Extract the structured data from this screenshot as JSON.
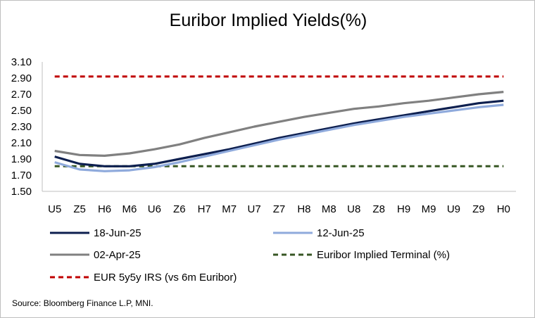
{
  "chart_data": {
    "type": "line",
    "title": "Euribor Implied Yields(%)",
    "xlabel": "",
    "ylabel": "",
    "categories": [
      "U5",
      "Z5",
      "H6",
      "M6",
      "U6",
      "Z6",
      "H7",
      "M7",
      "U7",
      "Z7",
      "H8",
      "M8",
      "U8",
      "Z8",
      "H9",
      "M9",
      "U9",
      "Z9",
      "H0"
    ],
    "ylim": [
      1.5,
      3.1
    ],
    "yticks": [
      "3.10",
      "2.90",
      "2.70",
      "2.50",
      "2.30",
      "2.10",
      "1.90",
      "1.70",
      "1.50"
    ],
    "grid": false,
    "legend_position": "bottom",
    "series": [
      {
        "name": "18-Jun-25",
        "color": "#0d1f4f",
        "dash": "solid",
        "values": [
          1.93,
          1.84,
          1.81,
          1.81,
          1.84,
          1.9,
          1.96,
          2.02,
          2.09,
          2.16,
          2.22,
          2.28,
          2.34,
          2.39,
          2.44,
          2.49,
          2.54,
          2.59,
          2.62
        ]
      },
      {
        "name": "12-Jun-25",
        "color": "#8faadc",
        "dash": "solid",
        "values": [
          1.86,
          1.77,
          1.75,
          1.76,
          1.8,
          1.86,
          1.93,
          2.0,
          2.07,
          2.14,
          2.2,
          2.26,
          2.32,
          2.37,
          2.42,
          2.46,
          2.5,
          2.54,
          2.57
        ]
      },
      {
        "name": "02-Apr-25",
        "color": "#808080",
        "dash": "solid",
        "values": [
          2.0,
          1.95,
          1.94,
          1.97,
          2.02,
          2.08,
          2.16,
          2.23,
          2.3,
          2.36,
          2.42,
          2.47,
          2.52,
          2.55,
          2.59,
          2.62,
          2.66,
          2.7,
          2.73
        ]
      },
      {
        "name": "Euribor Implied Terminal (%)",
        "color": "#375623",
        "dash": "dashed",
        "values": [
          1.81,
          1.81,
          1.81,
          1.81,
          1.81,
          1.81,
          1.81,
          1.81,
          1.81,
          1.81,
          1.81,
          1.81,
          1.81,
          1.81,
          1.81,
          1.81,
          1.81,
          1.81,
          1.81
        ]
      },
      {
        "name": "EUR 5y5y IRS (vs 6m Euribor)",
        "color": "#c00000",
        "dash": "dashed",
        "values": [
          2.92,
          2.92,
          2.92,
          2.92,
          2.92,
          2.92,
          2.92,
          2.92,
          2.92,
          2.92,
          2.92,
          2.92,
          2.92,
          2.92,
          2.92,
          2.92,
          2.92,
          2.92,
          2.92
        ]
      }
    ]
  },
  "source": "Source: Bloomberg Finance L.P, MNI."
}
